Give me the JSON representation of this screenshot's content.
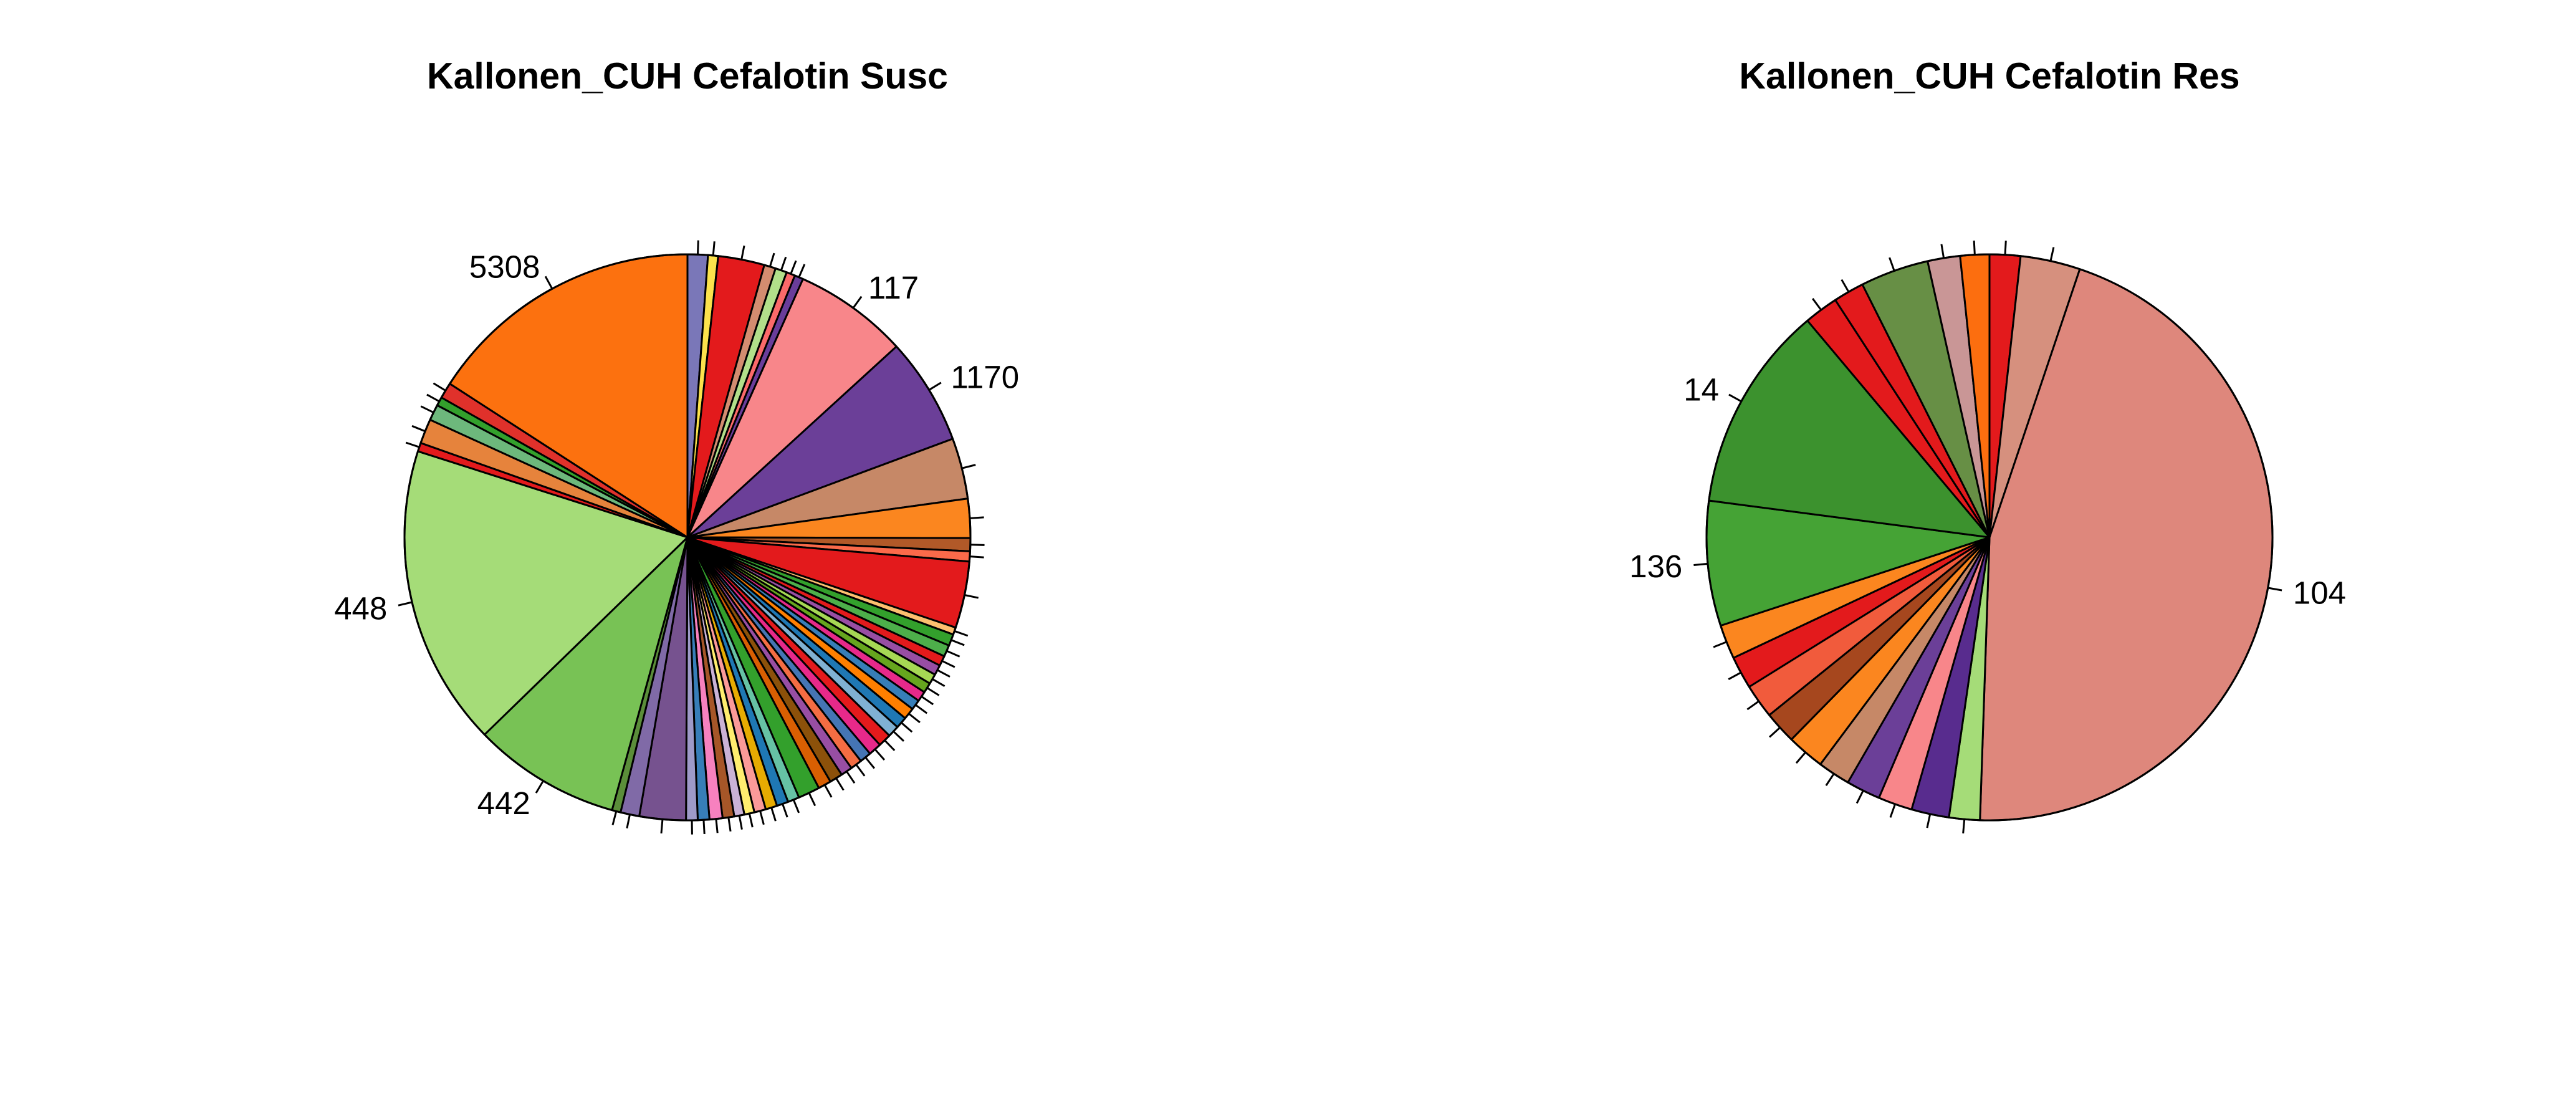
{
  "chart_data": [
    {
      "type": "pie",
      "title": "Kallonen_CUH Cefalotin Susc",
      "start_angle_deg": 90,
      "direction": "clockwise",
      "slices": [
        {
          "label": "",
          "value": 1.4,
          "color": "#7A77B8"
        },
        {
          "label": "",
          "value": 0.7,
          "color": "#FCE24C"
        },
        {
          "label": "",
          "value": 3.2,
          "color": "#E31A1C"
        },
        {
          "label": "",
          "value": 0.8,
          "color": "#D38C70"
        },
        {
          "label": "",
          "value": 0.8,
          "color": "#B2DF8A"
        },
        {
          "label": "",
          "value": 0.6,
          "color": "#FB6A6A"
        },
        {
          "label": "",
          "value": 0.6,
          "color": "#6A3D9A"
        },
        {
          "label": "117",
          "value": 7.9,
          "color": "#F8868A"
        },
        {
          "label": "1170",
          "value": 7.4,
          "color": "#6B3F98"
        },
        {
          "label": "",
          "value": 4.2,
          "color": "#C68867"
        },
        {
          "label": "",
          "value": 2.7,
          "color": "#FB861F"
        },
        {
          "label": "",
          "value": 0.9,
          "color": "#B15928"
        },
        {
          "label": "",
          "value": 0.7,
          "color": "#FB6A4A"
        },
        {
          "label": "",
          "value": 4.6,
          "color": "#E31A1C"
        },
        {
          "label": "",
          "value": 0.5,
          "color": "#FDBF6F"
        },
        {
          "label": "",
          "value": 0.8,
          "color": "#33A02C"
        },
        {
          "label": "",
          "value": 0.8,
          "color": "#4DAF4A"
        },
        {
          "label": "",
          "value": 0.7,
          "color": "#E31A1C"
        },
        {
          "label": "",
          "value": 0.7,
          "color": "#984EA3"
        },
        {
          "label": "",
          "value": 0.7,
          "color": "#A6D854"
        },
        {
          "label": "",
          "value": 0.7,
          "color": "#66A61E"
        },
        {
          "label": "",
          "value": 0.7,
          "color": "#E7298A"
        },
        {
          "label": "",
          "value": 0.7,
          "color": "#377EB8"
        },
        {
          "label": "",
          "value": 0.8,
          "color": "#FF7F00"
        },
        {
          "label": "",
          "value": 0.8,
          "color": "#1F78B4"
        },
        {
          "label": "",
          "value": 0.8,
          "color": "#80B1D3"
        },
        {
          "label": "",
          "value": 0.9,
          "color": "#E41A1C"
        },
        {
          "label": "",
          "value": 0.9,
          "color": "#E7298A"
        },
        {
          "label": "",
          "value": 0.8,
          "color": "#4575B4"
        },
        {
          "label": "",
          "value": 0.8,
          "color": "#F46D43"
        },
        {
          "label": "",
          "value": 0.8,
          "color": "#984EA3"
        },
        {
          "label": "",
          "value": 0.9,
          "color": "#8C510A"
        },
        {
          "label": "",
          "value": 0.9,
          "color": "#D95F02"
        },
        {
          "label": "",
          "value": 1.5,
          "color": "#33A02C"
        },
        {
          "label": "",
          "value": 0.8,
          "color": "#66C2A5"
        },
        {
          "label": "",
          "value": 0.8,
          "color": "#1F78B4"
        },
        {
          "label": "",
          "value": 0.8,
          "color": "#E6AB02"
        },
        {
          "label": "",
          "value": 0.8,
          "color": "#FB9A99"
        },
        {
          "label": "",
          "value": 0.7,
          "color": "#FFED6F"
        },
        {
          "label": "",
          "value": 0.7,
          "color": "#CAB2D6"
        },
        {
          "label": "",
          "value": 0.8,
          "color": "#A65628"
        },
        {
          "label": "",
          "value": 0.9,
          "color": "#F781BF"
        },
        {
          "label": "",
          "value": 0.8,
          "color": "#377EB8"
        },
        {
          "label": "",
          "value": 0.8,
          "color": "#9E9AC8"
        },
        {
          "label": "",
          "value": 3.2,
          "color": "#76528F"
        },
        {
          "label": "",
          "value": 1.3,
          "color": "#806AA7"
        },
        {
          "label": "",
          "value": 0.6,
          "color": "#5B8E3A"
        },
        {
          "label": "442",
          "value": 10.2,
          "color": "#78C255"
        },
        {
          "label": "448",
          "value": 20.8,
          "color": "#A5DC78"
        },
        {
          "label": "",
          "value": 0.6,
          "color": "#E31A1C"
        },
        {
          "label": "",
          "value": 1.7,
          "color": "#E6833C"
        },
        {
          "label": "",
          "value": 1.1,
          "color": "#6DB87C"
        },
        {
          "label": "",
          "value": 0.6,
          "color": "#33A02C"
        },
        {
          "label": "",
          "value": 1.1,
          "color": "#E0312B"
        },
        {
          "label": "5308",
          "value": 19.2,
          "color": "#FC710F"
        }
      ]
    },
    {
      "type": "pie",
      "title": "Kallonen_CUH Cefalotin Res",
      "start_angle_deg": 90,
      "direction": "clockwise",
      "slices": [
        {
          "label": "",
          "value": 1.8,
          "color": "#E31A1C"
        },
        {
          "label": "",
          "value": 3.5,
          "color": "#D6907E"
        },
        {
          "label": "104",
          "value": 46.5,
          "color": "#DE877C"
        },
        {
          "label": "",
          "value": 1.8,
          "color": "#A5DC78"
        },
        {
          "label": "",
          "value": 2.2,
          "color": "#582C8E"
        },
        {
          "label": "",
          "value": 2.0,
          "color": "#F8868A"
        },
        {
          "label": "",
          "value": 2.0,
          "color": "#6B3F98"
        },
        {
          "label": "",
          "value": 1.9,
          "color": "#C68867"
        },
        {
          "label": "",
          "value": 2.2,
          "color": "#FB861F"
        },
        {
          "label": "",
          "value": 1.9,
          "color": "#A6471E"
        },
        {
          "label": "",
          "value": 2.0,
          "color": "#F15B3C"
        },
        {
          "label": "",
          "value": 1.9,
          "color": "#E31A1C"
        },
        {
          "label": "",
          "value": 2.0,
          "color": "#FB861F"
        },
        {
          "label": "136",
          "value": 7.3,
          "color": "#45A335"
        },
        {
          "label": "14",
          "value": 12.1,
          "color": "#3C922E"
        },
        {
          "label": "",
          "value": 2.0,
          "color": "#E31A1C"
        },
        {
          "label": "",
          "value": 1.8,
          "color": "#E31A1C"
        },
        {
          "label": "",
          "value": 4.0,
          "color": "#678F45"
        },
        {
          "label": "",
          "value": 1.9,
          "color": "#C99696"
        },
        {
          "label": "",
          "value": 1.7,
          "color": "#FC6E0F"
        }
      ]
    }
  ]
}
